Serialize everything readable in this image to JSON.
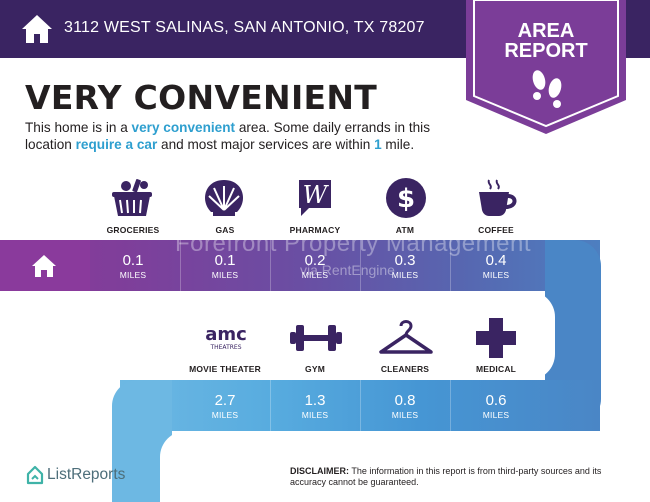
{
  "header": {
    "address": "3112 WEST SALINAS, SAN ANTONIO, TX 78207",
    "badge_line1": "AREA",
    "badge_line2": "REPORT",
    "bg_color": "#3a2462",
    "badge_color": "#7b3d98"
  },
  "headline": "VERY CONVENIENT",
  "description": {
    "p1": "This home is in a ",
    "h1": "very convenient",
    "p2": " area. Some daily errands in this location ",
    "h2": "require a car",
    "p3": " and most major services are within ",
    "h3": "1",
    "p4": " mile.",
    "highlight_color": "#2e9fcf"
  },
  "places_row1": [
    {
      "label": "GROCERIES",
      "distance": "0.1",
      "unit": "MILES",
      "icon": "grocery-basket-icon"
    },
    {
      "label": "GAS",
      "distance": "0.1",
      "unit": "MILES",
      "icon": "gas-shell-icon"
    },
    {
      "label": "PHARMACY",
      "distance": "0.2",
      "unit": "MILES",
      "icon": "pharmacy-w-icon"
    },
    {
      "label": "ATM",
      "distance": "0.3",
      "unit": "MILES",
      "icon": "dollar-icon"
    },
    {
      "label": "COFFEE",
      "distance": "0.4",
      "unit": "MILES",
      "icon": "coffee-cup-icon"
    }
  ],
  "places_row2": [
    {
      "label": "MOVIE THEATER",
      "distance": "2.7",
      "unit": "MILES",
      "icon": "amc-theatres-icon"
    },
    {
      "label": "GYM",
      "distance": "1.3",
      "unit": "MILES",
      "icon": "dumbbell-icon"
    },
    {
      "label": "CLEANERS",
      "distance": "0.8",
      "unit": "MILES",
      "icon": "hanger-icon"
    },
    {
      "label": "MEDICAL",
      "distance": "0.6",
      "unit": "MILES",
      "icon": "medical-cross-icon"
    }
  ],
  "amc_logo": {
    "line1": "amc",
    "line2": "THEATRES"
  },
  "watermark": {
    "line1": "Forefront Property Management",
    "line2": "via RentEngine"
  },
  "footer": {
    "logo_text": "ListReports",
    "disclaimer_label": "DISCLAIMER:",
    "disclaimer_text": " The information in this report is from third-party sources and its accuracy cannot be guaranteed."
  }
}
